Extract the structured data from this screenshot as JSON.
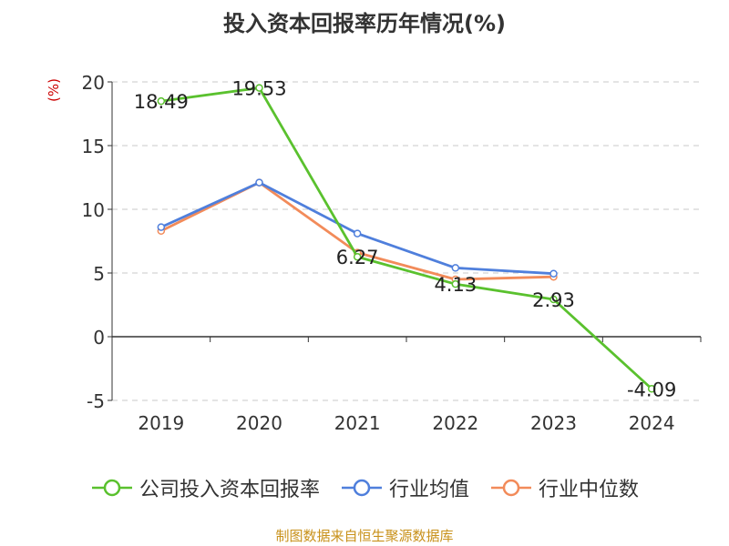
{
  "chart_data": {
    "type": "line",
    "title": "投入资本回报率历年情况(%)",
    "ylabel": "(%)",
    "categories": [
      "2019",
      "2020",
      "2021",
      "2022",
      "2023",
      "2024"
    ],
    "ylim": [
      -5,
      20
    ],
    "yticks": [
      -5,
      0,
      5,
      10,
      15,
      20
    ],
    "grid": true,
    "legend_position": "bottom",
    "series": [
      {
        "name": "公司投入资本回报率",
        "color": "#5ac12e",
        "values": [
          18.49,
          19.53,
          6.27,
          4.13,
          2.93,
          -4.09
        ],
        "labels": [
          "18.49",
          "19.53",
          "6.27",
          "4.13",
          "2.93",
          "-4.09"
        ]
      },
      {
        "name": "行业均值",
        "color": "#4f7fdc",
        "values": [
          8.6,
          12.1,
          8.1,
          5.4,
          4.95,
          null
        ]
      },
      {
        "name": "行业中位数",
        "color": "#f28b5a",
        "values": [
          8.3,
          12.1,
          6.6,
          4.5,
          4.7,
          null
        ]
      }
    ]
  },
  "colors": {
    "ylabel": "#cc0000",
    "source": "#c8911a"
  },
  "source": "制图数据来自恒生聚源数据库"
}
